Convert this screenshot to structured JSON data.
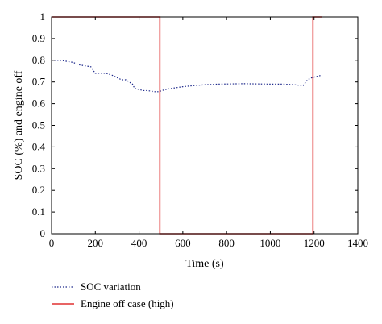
{
  "chart_data": {
    "type": "line",
    "xlabel": "Time (s)",
    "ylabel": "SOC (%) and engine off",
    "xlim": [
      0,
      1400
    ],
    "ylim": [
      0,
      1
    ],
    "xticks": [
      0,
      200,
      400,
      600,
      800,
      1000,
      1200,
      1400
    ],
    "yticks": [
      0,
      0.1,
      0.2,
      0.3,
      0.4,
      0.5,
      0.6,
      0.7,
      0.8,
      0.9,
      1
    ],
    "grid": false,
    "legend_position": "bottom-left",
    "series": [
      {
        "name": "SOC variation",
        "style": "dotted",
        "color": "#1f2a8c",
        "x": [
          0,
          40,
          100,
          120,
          180,
          200,
          220,
          250,
          280,
          300,
          320,
          340,
          370,
          380,
          400,
          420,
          440,
          470,
          490,
          520,
          560,
          600,
          650,
          700,
          760,
          820,
          880,
          940,
          1000,
          1060,
          1100,
          1130,
          1150,
          1170,
          1190,
          1210,
          1230
        ],
        "y": [
          0.8,
          0.8,
          0.79,
          0.78,
          0.77,
          0.74,
          0.74,
          0.74,
          0.73,
          0.72,
          0.71,
          0.71,
          0.69,
          0.67,
          0.665,
          0.66,
          0.66,
          0.655,
          0.655,
          0.665,
          0.672,
          0.678,
          0.683,
          0.687,
          0.69,
          0.691,
          0.692,
          0.691,
          0.69,
          0.69,
          0.688,
          0.685,
          0.683,
          0.71,
          0.72,
          0.725,
          0.73
        ]
      },
      {
        "name": "Engine off case (high)",
        "style": "solid",
        "color": "#e03030",
        "x": [
          0,
          495,
          495,
          1195,
          1195,
          1235
        ],
        "y": [
          1,
          1,
          0,
          0,
          1,
          1
        ]
      }
    ]
  }
}
